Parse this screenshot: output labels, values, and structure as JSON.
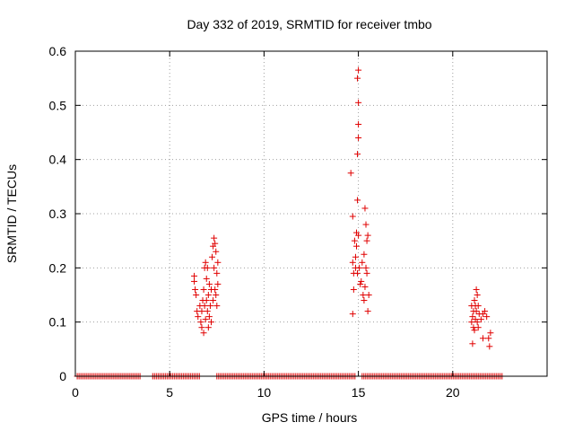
{
  "chart_data": {
    "type": "scatter",
    "title": "Day 332 of 2019, SRMTID for receiver tmbo",
    "xlabel": "GPS time / hours",
    "ylabel": "SRMTID / TECUs",
    "xlim": [
      0,
      25
    ],
    "ylim": [
      0,
      0.6
    ],
    "xticks": [
      0,
      5,
      10,
      15,
      20
    ],
    "yticks": [
      0,
      0.1,
      0.2,
      0.3,
      0.4,
      0.5,
      0.6
    ],
    "xtick_labels": [
      "0",
      "5",
      "10",
      "15",
      "20"
    ],
    "ytick_labels": [
      "0",
      "0.1",
      "0.2",
      "0.3",
      "0.4",
      "0.5",
      "0.6"
    ],
    "grid": true,
    "marker": "+",
    "color": "#e00000",
    "series": [
      {
        "name": "tmbo",
        "zero_segments": [
          [
            0.1,
            3.5
          ],
          [
            4.1,
            6.6
          ],
          [
            7.5,
            14.9
          ],
          [
            15.2,
            22.7
          ]
        ],
        "points": [
          [
            6.3,
            0.185
          ],
          [
            6.3,
            0.175
          ],
          [
            6.35,
            0.16
          ],
          [
            6.4,
            0.15
          ],
          [
            6.45,
            0.12
          ],
          [
            6.5,
            0.11
          ],
          [
            6.6,
            0.13
          ],
          [
            6.65,
            0.1
          ],
          [
            6.7,
            0.09
          ],
          [
            6.7,
            0.12
          ],
          [
            6.75,
            0.14
          ],
          [
            6.8,
            0.16
          ],
          [
            6.8,
            0.08
          ],
          [
            6.85,
            0.2
          ],
          [
            6.85,
            0.13
          ],
          [
            6.9,
            0.21
          ],
          [
            6.9,
            0.105
          ],
          [
            6.95,
            0.18
          ],
          [
            6.95,
            0.14
          ],
          [
            7.0,
            0.2
          ],
          [
            7.0,
            0.12
          ],
          [
            7.05,
            0.15
          ],
          [
            7.05,
            0.09
          ],
          [
            7.1,
            0.17
          ],
          [
            7.1,
            0.11
          ],
          [
            7.15,
            0.13
          ],
          [
            7.2,
            0.16
          ],
          [
            7.2,
            0.1
          ],
          [
            7.25,
            0.22
          ],
          [
            7.3,
            0.24
          ],
          [
            7.3,
            0.14
          ],
          [
            7.35,
            0.255
          ],
          [
            7.35,
            0.2
          ],
          [
            7.4,
            0.245
          ],
          [
            7.4,
            0.16
          ],
          [
            7.45,
            0.23
          ],
          [
            7.45,
            0.15
          ],
          [
            7.5,
            0.19
          ],
          [
            7.5,
            0.13
          ],
          [
            7.55,
            0.21
          ],
          [
            7.55,
            0.17
          ],
          [
            14.6,
            0.375
          ],
          [
            14.7,
            0.295
          ],
          [
            14.7,
            0.21
          ],
          [
            14.75,
            0.19
          ],
          [
            14.75,
            0.16
          ],
          [
            14.7,
            0.115
          ],
          [
            14.8,
            0.25
          ],
          [
            14.85,
            0.22
          ],
          [
            14.85,
            0.2
          ],
          [
            14.9,
            0.265
          ],
          [
            14.9,
            0.24
          ],
          [
            14.95,
            0.55
          ],
          [
            14.95,
            0.41
          ],
          [
            14.95,
            0.325
          ],
          [
            14.95,
            0.19
          ],
          [
            15.0,
            0.565
          ],
          [
            15.0,
            0.505
          ],
          [
            15.0,
            0.465
          ],
          [
            15.0,
            0.44
          ],
          [
            15.0,
            0.26
          ],
          [
            15.05,
            0.2
          ],
          [
            15.1,
            0.17
          ],
          [
            15.15,
            0.175
          ],
          [
            15.2,
            0.21
          ],
          [
            15.25,
            0.15
          ],
          [
            15.3,
            0.14
          ],
          [
            15.3,
            0.225
          ],
          [
            15.35,
            0.31
          ],
          [
            15.35,
            0.165
          ],
          [
            15.4,
            0.28
          ],
          [
            15.4,
            0.2
          ],
          [
            15.45,
            0.25
          ],
          [
            15.45,
            0.19
          ],
          [
            15.5,
            0.26
          ],
          [
            15.5,
            0.12
          ],
          [
            15.55,
            0.15
          ],
          [
            21.0,
            0.13
          ],
          [
            21.0,
            0.1
          ],
          [
            21.05,
            0.11
          ],
          [
            21.05,
            0.06
          ],
          [
            21.1,
            0.09
          ],
          [
            21.1,
            0.12
          ],
          [
            21.15,
            0.14
          ],
          [
            21.15,
            0.085
          ],
          [
            21.2,
            0.13
          ],
          [
            21.2,
            0.105
          ],
          [
            21.25,
            0.16
          ],
          [
            21.25,
            0.12
          ],
          [
            21.3,
            0.15
          ],
          [
            21.3,
            0.1
          ],
          [
            21.35,
            0.13
          ],
          [
            21.35,
            0.09
          ],
          [
            21.4,
            0.115
          ],
          [
            21.5,
            0.105
          ],
          [
            21.6,
            0.115
          ],
          [
            21.7,
            0.12
          ],
          [
            21.8,
            0.11
          ],
          [
            21.9,
            0.07
          ],
          [
            21.95,
            0.055
          ],
          [
            22.0,
            0.08
          ],
          [
            21.6,
            0.07
          ]
        ]
      }
    ]
  }
}
